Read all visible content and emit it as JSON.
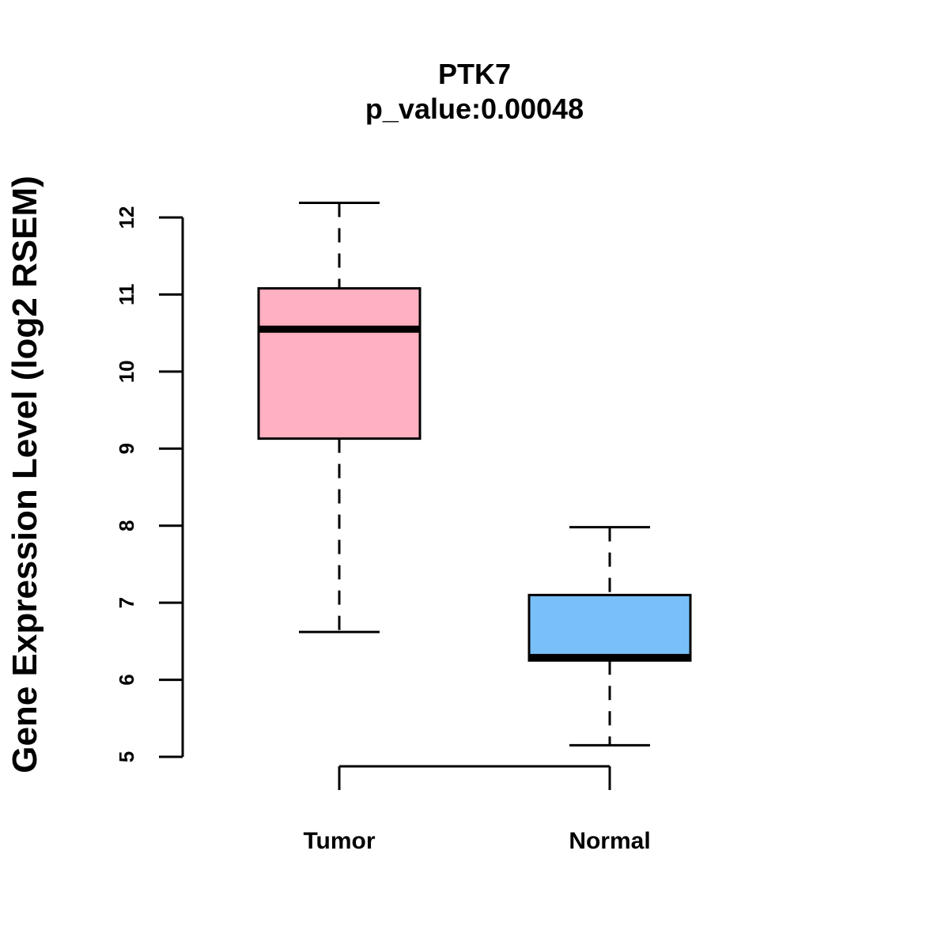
{
  "chart_data": {
    "type": "box",
    "title": "PTK7",
    "subtitle": "p_value:0.00048",
    "xlabel": "",
    "ylabel": "Gene Expression Level (log2 RSEM)",
    "ylim": [
      5,
      12
    ],
    "yticks": [
      5,
      6,
      7,
      8,
      9,
      10,
      11,
      12
    ],
    "ytick_labels": [
      "5",
      "6",
      "7",
      "8",
      "9",
      "10",
      "11",
      "12"
    ],
    "categories": [
      "Tumor",
      "Normal"
    ],
    "series": [
      {
        "name": "Tumor",
        "whisker_low": 6.62,
        "q1": 9.13,
        "median": 10.55,
        "q3": 11.08,
        "whisker_high": 12.19,
        "color": "#FFB0C1"
      },
      {
        "name": "Normal",
        "whisker_low": 5.15,
        "q1": 6.25,
        "median": 6.29,
        "q3": 7.1,
        "whisker_high": 7.98,
        "color": "#78C0F7"
      }
    ]
  }
}
